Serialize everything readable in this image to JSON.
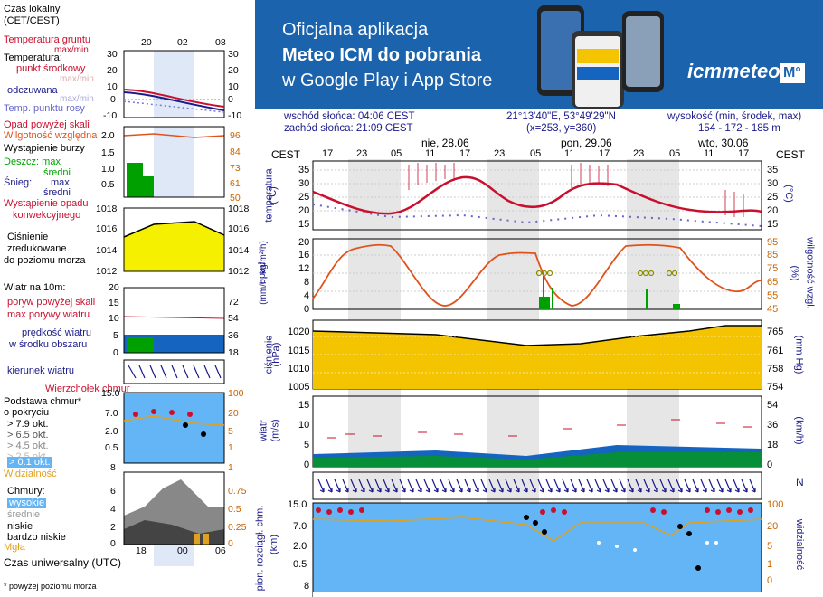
{
  "banner": {
    "line1": "Oficjalna aplikacja",
    "line2": "Meteo ICM do pobrania",
    "line3": "w Google Play i App Store",
    "logo_text": "icmmeteo",
    "logo_badge": "M°"
  },
  "info": {
    "sunrise": "wschód słońca: 04:06 CEST",
    "sunset": "zachód słońca: 21:09 CEST",
    "coords": "21°13'40\"E, 53°49'29\"N",
    "grid": "(x=253,  y=360)",
    "altitude_label": "wysokość (min, środek, max)",
    "altitude_values": "154 - 172 - 185 m"
  },
  "legend": {
    "local_time": "Czas lokalny",
    "local_time2": "(CET/CEST)",
    "top_hours": [
      "20",
      "02",
      "08"
    ],
    "ground_temp": "Temperatura gruntu",
    "ground_maxmin": "max/min",
    "temperature": "Temperatura:",
    "midpoint": "punkt środkowy",
    "max_min1": "max/min",
    "felt": "odczuwana",
    "max_min2": "max/min",
    "dew": "Temp. punktu rosy",
    "temp_ticks_left": [
      "30",
      "20",
      "10",
      "0",
      "-10"
    ],
    "temp_ticks_right": [
      "30",
      "20",
      "10",
      "0",
      "-10"
    ],
    "precip_above": "Opad powyżej skali",
    "humidity": "Wilgotność względna",
    "storm": "Wystąpienie burzy",
    "snow_rain": "Deszcz: max",
    "avg1": "średni",
    "snow": "Śnieg:",
    "snow_max": "max",
    "avg2": "średni",
    "precip_occur": "Wystąpienie opadu",
    "convective": "konwekcyjnego",
    "precip_ticks_left": [
      "2.0",
      "1.5",
      "1.0",
      "0.5"
    ],
    "precip_ticks_right": [
      "96",
      "84",
      "73",
      "61",
      "50"
    ],
    "pressure": "Ciśnienie",
    "reduced": "zredukowane",
    "sea_level": "do poziomu morza",
    "pressure_ticks_left": [
      "1018",
      "1016",
      "1014",
      "1012"
    ],
    "pressure_ticks_right": [
      "1018",
      "1016",
      "1014",
      "1012"
    ],
    "wind10": "Wiatr na 10m:",
    "gust_above": "poryw powyżej skali",
    "max_gust": "max porywy wiatru",
    "wind_speed": "prędkość wiatru",
    "area_mid": "w środku obszaru",
    "wind_ticks_left": [
      "20",
      "15",
      "10",
      "5",
      "0"
    ],
    "wind_ticks_right": [
      "72",
      "54",
      "36",
      "18",
      "0"
    ],
    "wind_dir": "kierunek wiatru",
    "cloud_top": "Wierzchołek chmur",
    "cloud_base": "Podstawa chmur*",
    "cloud_cover": "o pokryciu",
    "okt79": "> 7.9 okt.",
    "okt65": "> 6.5 okt.",
    "okt45": "> 4.5 okt.",
    "okt25": "> 2.5 okt.",
    "okt01": "> 0.1 okt.",
    "cloud_ticks_left": [
      "15.0",
      "7.0",
      "2.0",
      "0.5"
    ],
    "cloud_ticks_right": [
      "100",
      "20",
      "5",
      "1"
    ],
    "visibility": "Widzialność",
    "vis_left": "8",
    "vis_right": "1",
    "clouds": "Chmury:",
    "high": "wysokie",
    "medium": "średnie",
    "low": "niskie",
    "very_low": "bardzo niskie",
    "fog": "Mgła",
    "clouds_ticks_left": [
      "6",
      "4",
      "2",
      "0"
    ],
    "clouds_ticks_right": [
      "0.75",
      "0.5",
      "0.25",
      "0"
    ],
    "utc": "Czas uniwersalny (UTC)",
    "bottom_hours": [
      "18",
      "00",
      "06"
    ],
    "footnote": "* powyżej poziomu morza"
  },
  "main": {
    "cest_left": "CEST",
    "cest_right": "CEST",
    "days": [
      "nie, 28.06",
      "pon, 29.06",
      "wto, 30.06"
    ],
    "hours": [
      "17",
      "23",
      "05",
      "11",
      "17",
      "23",
      "05",
      "11",
      "17",
      "23",
      "05",
      "11",
      "17"
    ],
    "temp_label": "temperatura",
    "temp_unit": "(°C)",
    "temp_ticks": [
      "35",
      "30",
      "25",
      "20",
      "15"
    ],
    "precip_label": "opad",
    "precip_unit": "(mm/h, kg/m²/h)",
    "precip_ticks": [
      "20",
      "16",
      "12",
      "8",
      "4",
      "0"
    ],
    "humid_label": "wilgotność wzgl.",
    "humid_unit": "(%)",
    "humid_ticks": [
      "95",
      "85",
      "75",
      "65",
      "55",
      "45"
    ],
    "press_label": "ciśnienie",
    "press_unit": "(hPa)",
    "press_ticks": [
      "1020",
      "1015",
      "1010",
      "1005"
    ],
    "mmhg_unit": "(mm Hg)",
    "mmhg_ticks": [
      "765",
      "761",
      "758",
      "754"
    ],
    "wind_label": "wiatr",
    "wind_unit": "(m/s)",
    "wind_ticks": [
      "15",
      "10",
      "5",
      "0"
    ],
    "kmh_unit": "(km/h)",
    "kmh_ticks": [
      "54",
      "36",
      "18",
      "0"
    ],
    "cloud_label": "pion. rozciągł. chm.",
    "cloud_unit": "(km)",
    "cloud_ticks": [
      "15.0",
      "7.0",
      "2.0",
      "0.5"
    ],
    "vis_label": "widzialność",
    "vis_unit": "(km)",
    "vis_ticks": [
      "100",
      "20",
      "5",
      "1",
      "0"
    ],
    "bottom_tick": "8",
    "compass": "N"
  },
  "colors": {
    "banner_bg": "#1b63ad",
    "temp_line": "#c8102e",
    "humidity_line": "#e0521a",
    "pressure_fill": "#f5c400",
    "wind_fill": "#1565c0",
    "cloud_bg": "#64b5f6"
  }
}
